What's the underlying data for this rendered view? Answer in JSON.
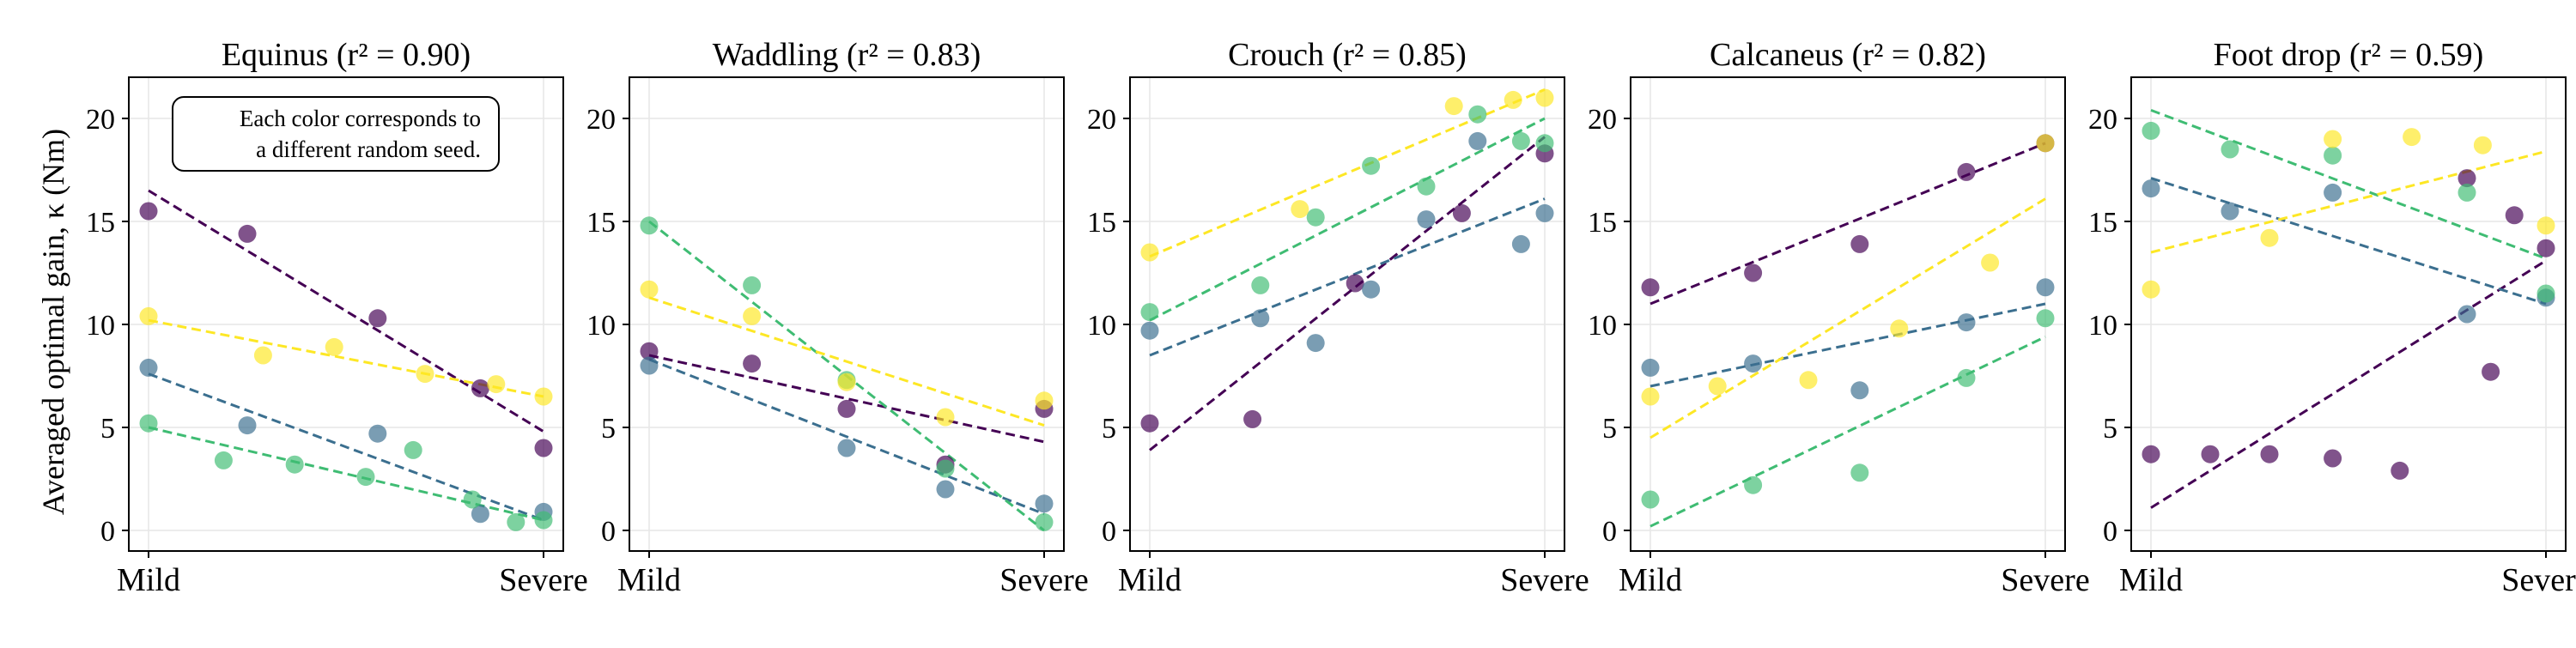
{
  "figure": {
    "ylabel": "Averaged optimal gain, κ (Nm)",
    "annotation": "Each color corresponds to a different random seed.",
    "annotation_lines": [
      "Each color corresponds to",
      "a different random seed."
    ],
    "colors": {
      "purple": "#440154",
      "blue": "#3b6f8f",
      "green": "#3fbc73",
      "yellow": "#fde725"
    }
  },
  "chart_data": [
    {
      "type": "scatter",
      "title": "Equinus (r² = 0.90)",
      "ylim": [
        -1,
        22
      ],
      "yticks": [
        0,
        5,
        10,
        15,
        20
      ],
      "x_categories": [
        "Mild",
        "Severe"
      ],
      "xlim": [
        -0.05,
        1.05
      ],
      "grid": true,
      "series": [
        {
          "color": "purple",
          "points": [
            [
              0,
              15.5
            ],
            [
              0.25,
              14.4
            ],
            [
              0.58,
              10.3
            ],
            [
              0.84,
              6.9
            ],
            [
              1,
              4.0
            ]
          ],
          "fit": [
            [
              0.0,
              16.5
            ],
            [
              1.0,
              4.8
            ]
          ]
        },
        {
          "color": "blue",
          "points": [
            [
              0,
              7.9
            ],
            [
              0.25,
              5.1
            ],
            [
              0.58,
              4.7
            ],
            [
              0.84,
              0.8
            ],
            [
              1,
              0.9
            ]
          ],
          "fit": [
            [
              0.0,
              7.6
            ],
            [
              1.0,
              0.5
            ]
          ]
        },
        {
          "color": "green",
          "points": [
            [
              0,
              5.2
            ],
            [
              0.19,
              3.4
            ],
            [
              0.37,
              3.2
            ],
            [
              0.55,
              2.6
            ],
            [
              0.67,
              3.9
            ],
            [
              0.82,
              1.5
            ],
            [
              0.93,
              0.4
            ],
            [
              1,
              0.5
            ]
          ],
          "fit": [
            [
              0.0,
              5.0
            ],
            [
              1.0,
              0.5
            ]
          ]
        },
        {
          "color": "yellow",
          "points": [
            [
              0,
              10.4
            ],
            [
              0.29,
              8.5
            ],
            [
              0.47,
              8.9
            ],
            [
              0.7,
              7.6
            ],
            [
              0.88,
              7.1
            ],
            [
              1,
              6.5
            ]
          ],
          "fit": [
            [
              0.0,
              10.2
            ],
            [
              1.0,
              6.5
            ]
          ]
        }
      ]
    },
    {
      "type": "scatter",
      "title": "Waddling (r² = 0.83)",
      "ylim": [
        -1,
        22
      ],
      "yticks": [
        0,
        5,
        10,
        15,
        20
      ],
      "x_categories": [
        "Mild",
        "Severe"
      ],
      "xlim": [
        -0.05,
        1.05
      ],
      "grid": true,
      "series": [
        {
          "color": "purple",
          "points": [
            [
              0,
              8.7
            ],
            [
              0.26,
              8.1
            ],
            [
              0.5,
              5.9
            ],
            [
              0.75,
              3.2
            ],
            [
              1,
              5.9
            ]
          ],
          "fit": [
            [
              0.0,
              8.5
            ],
            [
              1.0,
              4.3
            ]
          ]
        },
        {
          "color": "blue",
          "points": [
            [
              0,
              8.0
            ],
            [
              0.5,
              4.0
            ],
            [
              0.75,
              2.0
            ],
            [
              1,
              1.3
            ]
          ],
          "fit": [
            [
              0.0,
              8.3
            ],
            [
              1.0,
              0.8
            ]
          ]
        },
        {
          "color": "green",
          "points": [
            [
              0,
              14.8
            ],
            [
              0.26,
              11.9
            ],
            [
              0.5,
              7.3
            ],
            [
              0.75,
              3.0
            ],
            [
              1,
              0.4
            ]
          ],
          "fit": [
            [
              0.0,
              15.0
            ],
            [
              1.0,
              0.0
            ]
          ]
        },
        {
          "color": "yellow",
          "points": [
            [
              0,
              11.7
            ],
            [
              0.26,
              10.4
            ],
            [
              0.5,
              7.2
            ],
            [
              0.75,
              5.5
            ],
            [
              1,
              6.3
            ]
          ],
          "fit": [
            [
              0.0,
              11.3
            ],
            [
              1.0,
              5.1
            ]
          ]
        }
      ]
    },
    {
      "type": "scatter",
      "title": "Crouch (r² = 0.85)",
      "ylim": [
        -1,
        22
      ],
      "yticks": [
        0,
        5,
        10,
        15,
        20
      ],
      "x_categories": [
        "Mild",
        "Severe"
      ],
      "xlim": [
        -0.05,
        1.05
      ],
      "grid": true,
      "series": [
        {
          "color": "purple",
          "points": [
            [
              0,
              5.2
            ],
            [
              0.26,
              5.4
            ],
            [
              0.52,
              12.0
            ],
            [
              0.79,
              15.4
            ],
            [
              1,
              18.3
            ]
          ],
          "fit": [
            [
              0.0,
              3.9
            ],
            [
              1.0,
              19.1
            ]
          ]
        },
        {
          "color": "blue",
          "points": [
            [
              0,
              9.7
            ],
            [
              0.28,
              10.3
            ],
            [
              0.42,
              9.1
            ],
            [
              0.56,
              11.7
            ],
            [
              0.7,
              15.1
            ],
            [
              0.83,
              18.9
            ],
            [
              0.94,
              13.9
            ],
            [
              1,
              15.4
            ]
          ],
          "fit": [
            [
              0.0,
              8.5
            ],
            [
              1.0,
              16.1
            ]
          ]
        },
        {
          "color": "green",
          "points": [
            [
              0,
              10.6
            ],
            [
              0.28,
              11.9
            ],
            [
              0.42,
              15.2
            ],
            [
              0.56,
              17.7
            ],
            [
              0.7,
              16.7
            ],
            [
              0.83,
              20.2
            ],
            [
              0.94,
              18.9
            ],
            [
              1,
              18.8
            ]
          ],
          "fit": [
            [
              0.0,
              10.2
            ],
            [
              1.0,
              20.0
            ]
          ]
        },
        {
          "color": "yellow",
          "points": [
            [
              0,
              13.5
            ],
            [
              0.38,
              15.6
            ],
            [
              0.77,
              20.6
            ],
            [
              0.92,
              20.9
            ],
            [
              1,
              21.0
            ]
          ],
          "fit": [
            [
              0.0,
              13.3
            ],
            [
              1.0,
              21.4
            ]
          ]
        }
      ]
    },
    {
      "type": "scatter",
      "title": "Calcaneus (r² = 0.82)",
      "ylim": [
        -1,
        22
      ],
      "yticks": [
        0,
        5,
        10,
        15,
        20
      ],
      "x_categories": [
        "Mild",
        "Severe"
      ],
      "xlim": [
        -0.05,
        1.05
      ],
      "grid": true,
      "series": [
        {
          "color": "purple",
          "points": [
            [
              0,
              11.8
            ],
            [
              0.26,
              12.5
            ],
            [
              0.53,
              13.9
            ],
            [
              0.8,
              17.4
            ],
            [
              1,
              18.8
            ]
          ],
          "fit": [
            [
              0.0,
              11.0
            ],
            [
              1.0,
              18.8
            ]
          ]
        },
        {
          "color": "blue",
          "points": [
            [
              0,
              7.9
            ],
            [
              0.26,
              8.1
            ],
            [
              0.53,
              6.8
            ],
            [
              0.8,
              10.1
            ],
            [
              1,
              11.8
            ]
          ],
          "fit": [
            [
              0.0,
              7.0
            ],
            [
              1.0,
              11.0
            ]
          ]
        },
        {
          "color": "green",
          "points": [
            [
              0,
              1.5
            ],
            [
              0.26,
              2.2
            ],
            [
              0.53,
              2.8
            ],
            [
              0.8,
              7.4
            ],
            [
              1,
              10.3
            ]
          ],
          "fit": [
            [
              0.0,
              0.2
            ],
            [
              1.0,
              9.4
            ]
          ]
        },
        {
          "color": "yellow",
          "points": [
            [
              0,
              6.5
            ],
            [
              0.17,
              7.0
            ],
            [
              0.4,
              7.3
            ],
            [
              0.63,
              9.8
            ],
            [
              0.86,
              13.0
            ],
            [
              1,
              18.8
            ]
          ],
          "fit": [
            [
              0.0,
              4.5
            ],
            [
              1.0,
              16.1
            ]
          ]
        }
      ]
    },
    {
      "type": "scatter",
      "title": "Foot drop (r² = 0.59)",
      "ylim": [
        -1,
        22
      ],
      "yticks": [
        0,
        5,
        10,
        15,
        20
      ],
      "x_categories": [
        "Mild",
        "Severe"
      ],
      "xlim": [
        -0.05,
        1.05
      ],
      "grid": true,
      "series": [
        {
          "color": "purple",
          "points": [
            [
              0,
              3.7
            ],
            [
              0.15,
              3.7
            ],
            [
              0.3,
              3.7
            ],
            [
              0.46,
              3.5
            ],
            [
              0.63,
              2.9
            ],
            [
              0.8,
              17.1
            ],
            [
              0.86,
              7.7
            ],
            [
              0.92,
              15.3
            ],
            [
              1,
              13.7
            ]
          ],
          "fit": [
            [
              0.0,
              1.1
            ],
            [
              1.0,
              13.1
            ]
          ]
        },
        {
          "color": "blue",
          "points": [
            [
              0,
              16.6
            ],
            [
              0.2,
              15.5
            ],
            [
              0.46,
              16.4
            ],
            [
              0.8,
              10.5
            ],
            [
              1,
              11.3
            ]
          ],
          "fit": [
            [
              0.0,
              17.1
            ],
            [
              1.0,
              11.0
            ]
          ]
        },
        {
          "color": "green",
          "points": [
            [
              0,
              19.4
            ],
            [
              0.2,
              18.5
            ],
            [
              0.46,
              18.2
            ],
            [
              0.8,
              16.4
            ],
            [
              1,
              11.5
            ]
          ],
          "fit": [
            [
              0.0,
              20.4
            ],
            [
              1.0,
              13.2
            ]
          ]
        },
        {
          "color": "yellow",
          "points": [
            [
              0,
              11.7
            ],
            [
              0.3,
              14.2
            ],
            [
              0.46,
              19.0
            ],
            [
              0.66,
              19.1
            ],
            [
              0.84,
              18.7
            ],
            [
              1,
              14.8
            ]
          ],
          "fit": [
            [
              0.0,
              13.5
            ],
            [
              1.0,
              18.4
            ]
          ]
        }
      ]
    }
  ]
}
